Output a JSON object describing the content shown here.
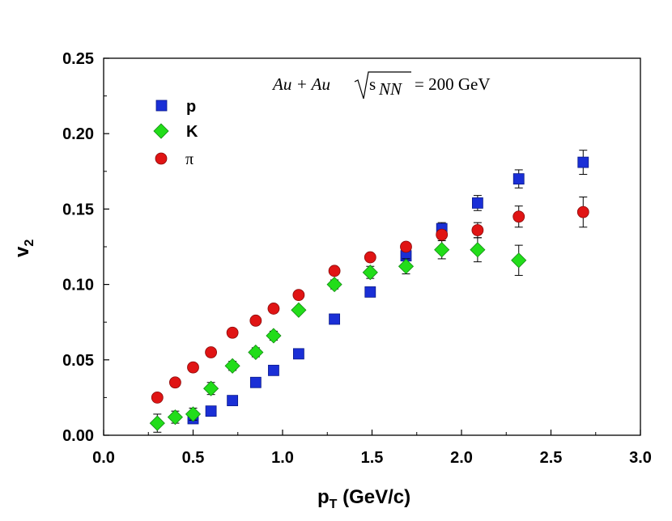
{
  "chart_data": {
    "type": "scatter",
    "title": "",
    "annotation": {
      "pre": "Au + Au",
      "sqrt_s": "s",
      "sqrt_sub": "NN",
      "post": "= 200 GeV"
    },
    "xlabel": {
      "main": "p",
      "sub": "T",
      "rest": " (GeV/c)"
    },
    "ylabel": {
      "main": "v",
      "sub": "2"
    },
    "xlim": [
      0.0,
      3.0
    ],
    "ylim": [
      0.0,
      0.25
    ],
    "xticks": [
      "0.0",
      "0.5",
      "1.0",
      "1.5",
      "2.0",
      "2.5",
      "3.0"
    ],
    "yticks": [
      "0.00",
      "0.05",
      "0.10",
      "0.15",
      "0.20",
      "0.25"
    ],
    "grid": false,
    "legend_position": "top-left",
    "series": [
      {
        "name": "p",
        "marker": "square",
        "color": "#1a2fd6",
        "points": [
          {
            "x": 0.5,
            "y": 0.011,
            "err": 0.0
          },
          {
            "x": 0.6,
            "y": 0.016,
            "err": 0.0
          },
          {
            "x": 0.72,
            "y": 0.023,
            "err": 0.0
          },
          {
            "x": 0.85,
            "y": 0.035,
            "err": 0.0
          },
          {
            "x": 0.95,
            "y": 0.043,
            "err": 0.0
          },
          {
            "x": 1.09,
            "y": 0.054,
            "err": 0.0
          },
          {
            "x": 1.29,
            "y": 0.077,
            "err": 0.0
          },
          {
            "x": 1.49,
            "y": 0.095,
            "err": 0.0
          },
          {
            "x": 1.69,
            "y": 0.119,
            "err": 0.0
          },
          {
            "x": 1.89,
            "y": 0.137,
            "err": 0.004
          },
          {
            "x": 2.09,
            "y": 0.154,
            "err": 0.005
          },
          {
            "x": 2.32,
            "y": 0.17,
            "err": 0.006
          },
          {
            "x": 2.68,
            "y": 0.181,
            "err": 0.008
          }
        ]
      },
      {
        "name": "K",
        "marker": "diamond",
        "color": "#22dd1a",
        "points": [
          {
            "x": 0.3,
            "y": 0.008,
            "err": 0.006
          },
          {
            "x": 0.4,
            "y": 0.012,
            "err": 0.004
          },
          {
            "x": 0.5,
            "y": 0.014,
            "err": 0.004
          },
          {
            "x": 0.6,
            "y": 0.031,
            "err": 0.004
          },
          {
            "x": 0.72,
            "y": 0.046,
            "err": 0.003
          },
          {
            "x": 0.85,
            "y": 0.055,
            "err": 0.003
          },
          {
            "x": 0.95,
            "y": 0.066,
            "err": 0.003
          },
          {
            "x": 1.09,
            "y": 0.083,
            "err": 0.002
          },
          {
            "x": 1.29,
            "y": 0.1,
            "err": 0.003
          },
          {
            "x": 1.49,
            "y": 0.108,
            "err": 0.004
          },
          {
            "x": 1.69,
            "y": 0.112,
            "err": 0.005
          },
          {
            "x": 1.89,
            "y": 0.123,
            "err": 0.006
          },
          {
            "x": 2.09,
            "y": 0.123,
            "err": 0.008
          },
          {
            "x": 2.32,
            "y": 0.116,
            "err": 0.01
          }
        ]
      },
      {
        "name": "π",
        "marker": "circle",
        "color": "#e01414",
        "points": [
          {
            "x": 0.3,
            "y": 0.025,
            "err": 0.0
          },
          {
            "x": 0.4,
            "y": 0.035,
            "err": 0.0
          },
          {
            "x": 0.5,
            "y": 0.045,
            "err": 0.0
          },
          {
            "x": 0.6,
            "y": 0.055,
            "err": 0.0
          },
          {
            "x": 0.72,
            "y": 0.068,
            "err": 0.0
          },
          {
            "x": 0.85,
            "y": 0.076,
            "err": 0.0
          },
          {
            "x": 0.95,
            "y": 0.084,
            "err": 0.0
          },
          {
            "x": 1.09,
            "y": 0.093,
            "err": 0.0
          },
          {
            "x": 1.29,
            "y": 0.109,
            "err": 0.0
          },
          {
            "x": 1.49,
            "y": 0.118,
            "err": 0.0
          },
          {
            "x": 1.69,
            "y": 0.125,
            "err": 0.0
          },
          {
            "x": 1.89,
            "y": 0.133,
            "err": 0.003
          },
          {
            "x": 2.09,
            "y": 0.136,
            "err": 0.005
          },
          {
            "x": 2.32,
            "y": 0.145,
            "err": 0.007
          },
          {
            "x": 2.68,
            "y": 0.148,
            "err": 0.01
          }
        ]
      }
    ]
  }
}
